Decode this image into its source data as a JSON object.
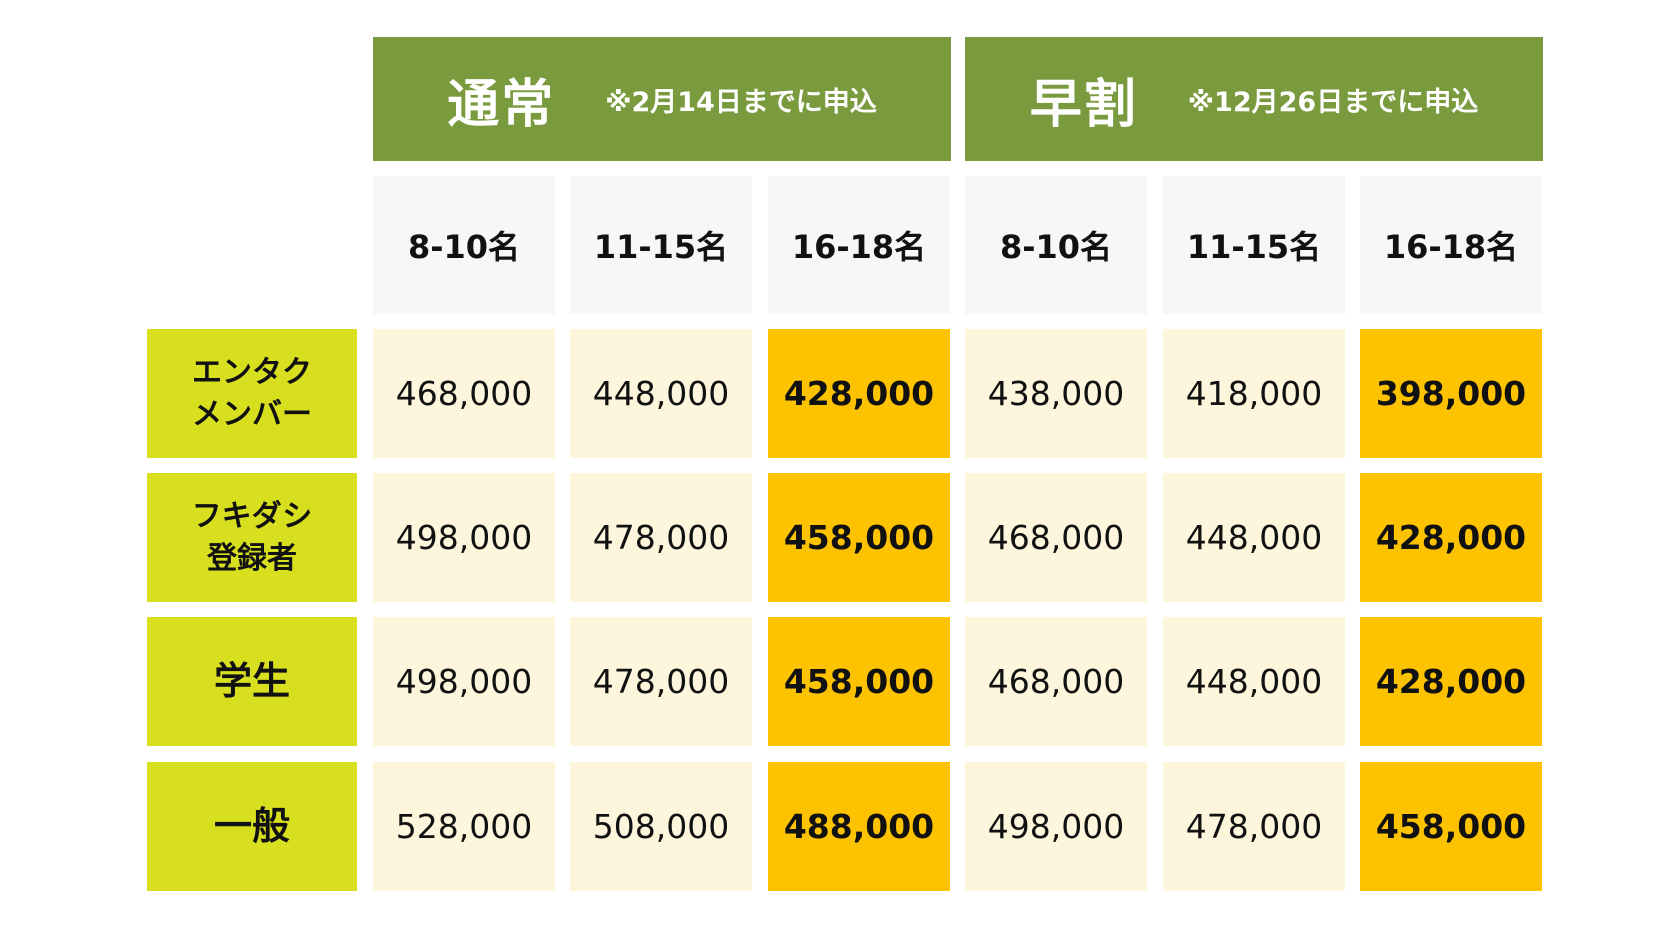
{
  "groups": [
    {
      "title": "通常",
      "note": "※2月14日までに申込"
    },
    {
      "title": "早割",
      "note": "※12月26日までに申込"
    }
  ],
  "group_sizes": [
    "8-10名",
    "11-15名",
    "16-18名"
  ],
  "rows": [
    {
      "label_line1": "エンタク",
      "label_line2": "メンバー",
      "prices": [
        "468,000",
        "448,000",
        "428,000",
        "438,000",
        "418,000",
        "398,000"
      ]
    },
    {
      "label_line1": "フキダシ",
      "label_line2": "登録者",
      "prices": [
        "498,000",
        "478,000",
        "458,000",
        "468,000",
        "448,000",
        "428,000"
      ]
    },
    {
      "label_line1": "学生",
      "label_line2": "",
      "prices": [
        "498,000",
        "478,000",
        "458,000",
        "468,000",
        "448,000",
        "428,000"
      ]
    },
    {
      "label_line1": "一般",
      "label_line2": "",
      "prices": [
        "528,000",
        "508,000",
        "488,000",
        "498,000",
        "478,000",
        "458,000"
      ]
    }
  ],
  "colors": {
    "group_header_bg": "#7a9a3e",
    "row_label_bg": "#d8df1e",
    "price_bg": "#fdf6dc",
    "highlight_bg": "#fdc300",
    "size_header_bg": "#f7f7f7"
  }
}
